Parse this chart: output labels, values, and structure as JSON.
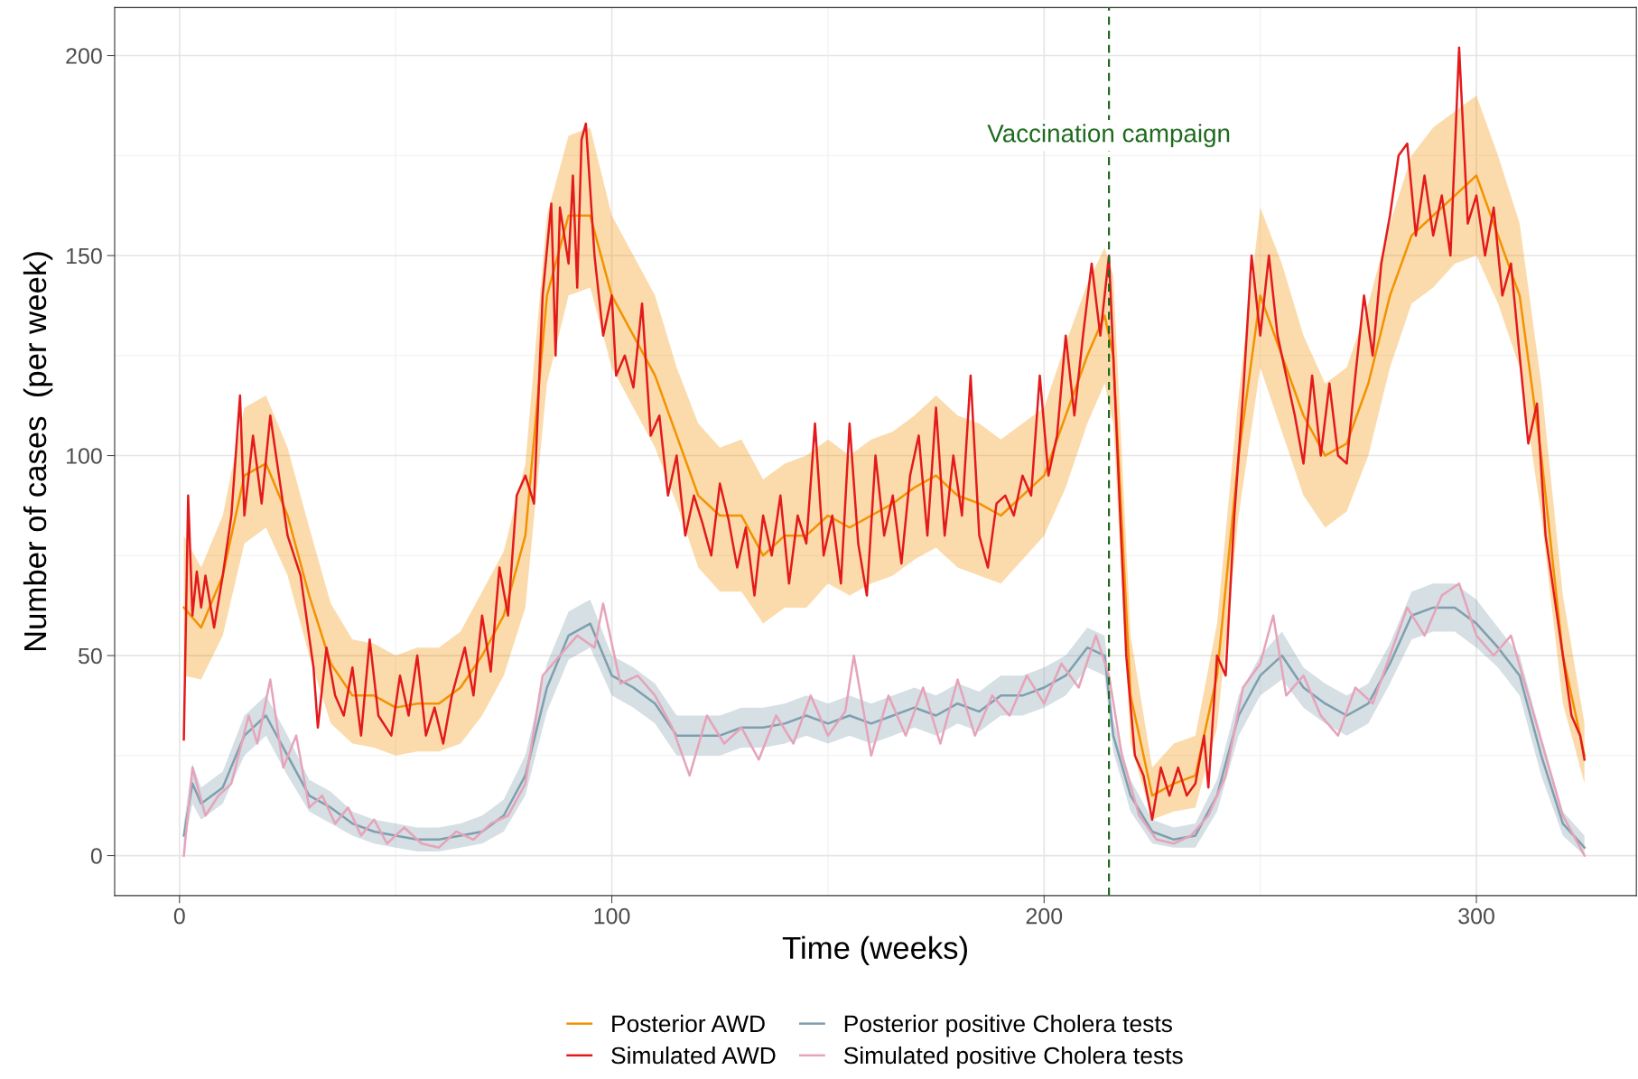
{
  "chart_data": {
    "type": "line",
    "xlabel": "Time (weeks)",
    "ylabel": "Number of cases  (per week)",
    "xlim": [
      -15,
      337
    ],
    "xticks": [
      0,
      100,
      200,
      300
    ],
    "ylim": [
      -10,
      212
    ],
    "yticks": [
      0,
      50,
      100,
      150,
      200
    ],
    "grid": true,
    "legend": "bottom",
    "line_style": "solid",
    "marker": "none",
    "ref_lines": [
      {
        "axis": "x",
        "value": 215,
        "label": "Vaccination campaign",
        "color": "#1e6b1e",
        "line_style": "dashed"
      }
    ],
    "series": [
      {
        "name": "Posterior AWD",
        "color": "#f39200",
        "x": [
          1,
          5,
          10,
          15,
          20,
          25,
          30,
          35,
          40,
          45,
          50,
          55,
          60,
          65,
          70,
          75,
          80,
          85,
          90,
          95,
          100,
          105,
          110,
          115,
          120,
          125,
          130,
          135,
          140,
          145,
          150,
          155,
          160,
          165,
          170,
          175,
          180,
          185,
          190,
          195,
          200,
          205,
          210,
          214,
          216,
          220,
          225,
          230,
          235,
          240,
          245,
          250,
          255,
          260,
          265,
          270,
          275,
          280,
          285,
          290,
          295,
          300,
          305,
          310,
          315,
          320,
          325
        ],
        "values": [
          62,
          57,
          70,
          95,
          98,
          85,
          65,
          48,
          40,
          40,
          37,
          38,
          38,
          42,
          50,
          60,
          80,
          140,
          160,
          160,
          140,
          130,
          120,
          105,
          90,
          85,
          85,
          75,
          80,
          80,
          85,
          82,
          85,
          88,
          92,
          95,
          90,
          88,
          85,
          90,
          95,
          110,
          125,
          135,
          125,
          40,
          15,
          18,
          20,
          45,
          100,
          140,
          125,
          110,
          100,
          103,
          118,
          140,
          155,
          160,
          165,
          170,
          155,
          140,
          100,
          50,
          25
        ],
        "lower": [
          45,
          44,
          55,
          78,
          82,
          70,
          50,
          33,
          28,
          27,
          25,
          26,
          26,
          28,
          35,
          45,
          62,
          118,
          140,
          142,
          122,
          112,
          102,
          88,
          72,
          66,
          66,
          58,
          62,
          62,
          68,
          65,
          68,
          70,
          74,
          77,
          72,
          70,
          68,
          74,
          80,
          92,
          108,
          118,
          108,
          28,
          9,
          11,
          12,
          32,
          85,
          122,
          106,
          90,
          82,
          86,
          100,
          122,
          138,
          142,
          148,
          150,
          138,
          122,
          85,
          38,
          18
        ],
        "upper": [
          80,
          72,
          85,
          112,
          115,
          102,
          82,
          63,
          54,
          53,
          50,
          52,
          52,
          56,
          66,
          76,
          98,
          160,
          180,
          182,
          160,
          150,
          140,
          122,
          108,
          102,
          104,
          94,
          98,
          100,
          104,
          100,
          104,
          106,
          110,
          115,
          110,
          108,
          104,
          108,
          112,
          128,
          143,
          152,
          145,
          55,
          22,
          28,
          30,
          58,
          115,
          162,
          148,
          130,
          118,
          122,
          138,
          158,
          175,
          182,
          186,
          190,
          175,
          158,
          118,
          65,
          33
        ]
      },
      {
        "name": "Simulated AWD",
        "color": "#e31a1c",
        "x": [
          1,
          2,
          3,
          4,
          5,
          6,
          8,
          10,
          12,
          14,
          15,
          17,
          19,
          21,
          23,
          25,
          28,
          31,
          32,
          34,
          36,
          38,
          40,
          42,
          44,
          46,
          49,
          51,
          53,
          55,
          57,
          59,
          61,
          63,
          66,
          68,
          70,
          72,
          74,
          76,
          78,
          80,
          82,
          84,
          86,
          87,
          88,
          90,
          91,
          92,
          93,
          94,
          96,
          98,
          100,
          101,
          103,
          105,
          107,
          109,
          111,
          113,
          115,
          117,
          119,
          121,
          123,
          125,
          127,
          129,
          131,
          133,
          135,
          137,
          139,
          141,
          143,
          145,
          147,
          149,
          151,
          153,
          155,
          157,
          159,
          161,
          163,
          165,
          167,
          169,
          171,
          173,
          175,
          177,
          179,
          181,
          183,
          185,
          187,
          189,
          191,
          193,
          195,
          197,
          199,
          201,
          203,
          205,
          207,
          209,
          211,
          213,
          215,
          217,
          219,
          221,
          223,
          225,
          227,
          229,
          231,
          233,
          235,
          237,
          238,
          240,
          242,
          244,
          246,
          248,
          250,
          252,
          254,
          256,
          258,
          260,
          262,
          264,
          266,
          268,
          270,
          272,
          274,
          276,
          278,
          280,
          282,
          284,
          286,
          288,
          290,
          292,
          294,
          296,
          298,
          300,
          302,
          304,
          306,
          308,
          310,
          312,
          314,
          316,
          318,
          320,
          322,
          324,
          325
        ],
        "values": [
          29,
          90,
          60,
          71,
          62,
          70,
          57,
          70,
          85,
          115,
          85,
          105,
          88,
          110,
          95,
          80,
          70,
          47,
          32,
          52,
          40,
          35,
          47,
          30,
          54,
          35,
          30,
          45,
          35,
          50,
          30,
          37,
          28,
          40,
          52,
          40,
          60,
          46,
          72,
          60,
          90,
          95,
          88,
          140,
          163,
          125,
          162,
          148,
          170,
          142,
          179,
          183,
          150,
          130,
          140,
          120,
          125,
          117,
          138,
          105,
          110,
          90,
          100,
          80,
          90,
          83,
          75,
          93,
          84,
          72,
          82,
          65,
          85,
          75,
          90,
          68,
          85,
          78,
          108,
          75,
          85,
          68,
          108,
          78,
          65,
          100,
          80,
          90,
          73,
          95,
          105,
          80,
          112,
          80,
          100,
          85,
          120,
          80,
          72,
          88,
          90,
          85,
          95,
          90,
          120,
          95,
          105,
          130,
          110,
          130,
          148,
          130,
          150,
          100,
          50,
          25,
          20,
          9,
          22,
          15,
          22,
          15,
          18,
          30,
          17,
          50,
          45,
          85,
          115,
          150,
          130,
          150,
          130,
          120,
          110,
          98,
          120,
          100,
          118,
          100,
          98,
          120,
          140,
          125,
          148,
          160,
          175,
          178,
          155,
          170,
          155,
          165,
          150,
          202,
          158,
          165,
          150,
          162,
          140,
          148,
          125,
          103,
          113,
          80,
          65,
          50,
          35,
          30,
          24
        ]
      },
      {
        "name": "Posterior positive Cholera tests",
        "color": "#7f9fae",
        "x": [
          1,
          3,
          5,
          10,
          15,
          20,
          25,
          30,
          35,
          40,
          45,
          50,
          55,
          60,
          65,
          70,
          75,
          80,
          85,
          90,
          95,
          100,
          105,
          110,
          115,
          120,
          125,
          130,
          135,
          140,
          145,
          150,
          155,
          160,
          165,
          170,
          175,
          180,
          185,
          190,
          195,
          200,
          205,
          210,
          214,
          216,
          220,
          225,
          230,
          235,
          240,
          245,
          250,
          255,
          260,
          265,
          270,
          275,
          280,
          285,
          290,
          295,
          300,
          305,
          310,
          315,
          320,
          325
        ],
        "values": [
          5,
          18,
          13,
          17,
          30,
          35,
          25,
          15,
          12,
          8,
          6,
          5,
          4,
          4,
          5,
          6,
          10,
          20,
          42,
          55,
          58,
          45,
          42,
          38,
          30,
          30,
          30,
          32,
          32,
          33,
          35,
          33,
          35,
          33,
          35,
          37,
          35,
          38,
          36,
          40,
          40,
          42,
          45,
          52,
          50,
          30,
          15,
          6,
          4,
          5,
          15,
          35,
          45,
          50,
          42,
          38,
          35,
          38,
          48,
          60,
          62,
          62,
          58,
          52,
          45,
          25,
          8,
          2
        ],
        "lower": [
          2,
          13,
          9,
          13,
          25,
          30,
          20,
          11,
          8,
          5,
          3,
          2,
          1,
          1,
          2,
          3,
          6,
          15,
          36,
          49,
          52,
          40,
          37,
          33,
          25,
          25,
          25,
          27,
          27,
          28,
          30,
          28,
          30,
          28,
          30,
          32,
          30,
          33,
          31,
          35,
          35,
          37,
          40,
          47,
          45,
          26,
          11,
          3,
          2,
          2,
          11,
          30,
          40,
          44,
          37,
          33,
          30,
          33,
          43,
          54,
          56,
          56,
          52,
          47,
          40,
          20,
          5,
          0
        ],
        "upper": [
          8,
          23,
          17,
          21,
          35,
          40,
          30,
          19,
          16,
          11,
          9,
          8,
          7,
          7,
          8,
          10,
          14,
          25,
          48,
          61,
          64,
          50,
          47,
          43,
          35,
          35,
          35,
          37,
          37,
          38,
          40,
          38,
          40,
          38,
          40,
          42,
          40,
          43,
          41,
          45,
          45,
          47,
          50,
          57,
          55,
          34,
          19,
          9,
          7,
          8,
          19,
          40,
          50,
          56,
          47,
          43,
          40,
          43,
          53,
          66,
          68,
          68,
          64,
          57,
          50,
          30,
          11,
          5
        ]
      },
      {
        "name": "Simulated positive Cholera tests",
        "color": "#e6a3b9",
        "x": [
          1,
          3,
          6,
          9,
          12,
          16,
          18,
          21,
          24,
          27,
          30,
          33,
          36,
          39,
          42,
          45,
          48,
          52,
          56,
          60,
          64,
          68,
          72,
          76,
          80,
          84,
          88,
          92,
          96,
          98,
          102,
          106,
          110,
          114,
          118,
          122,
          126,
          130,
          134,
          138,
          142,
          146,
          150,
          154,
          156,
          160,
          164,
          168,
          172,
          176,
          180,
          184,
          188,
          192,
          196,
          200,
          204,
          208,
          212,
          215,
          218,
          222,
          226,
          230,
          234,
          238,
          242,
          246,
          250,
          253,
          256,
          260,
          264,
          268,
          272,
          276,
          280,
          284,
          288,
          292,
          296,
          300,
          304,
          308,
          312,
          316,
          320,
          325
        ],
        "values": [
          0,
          22,
          10,
          15,
          18,
          35,
          28,
          44,
          22,
          30,
          12,
          15,
          8,
          12,
          5,
          9,
          3,
          7,
          3,
          2,
          6,
          4,
          8,
          10,
          18,
          45,
          50,
          55,
          52,
          63,
          43,
          45,
          40,
          32,
          20,
          35,
          28,
          32,
          24,
          35,
          28,
          40,
          30,
          36,
          50,
          25,
          40,
          30,
          42,
          28,
          44,
          30,
          40,
          35,
          45,
          38,
          48,
          42,
          55,
          45,
          25,
          10,
          4,
          3,
          5,
          10,
          20,
          42,
          48,
          60,
          40,
          45,
          35,
          30,
          42,
          38,
          50,
          62,
          55,
          65,
          68,
          55,
          50,
          55,
          40,
          25,
          10,
          0
        ]
      }
    ]
  }
}
